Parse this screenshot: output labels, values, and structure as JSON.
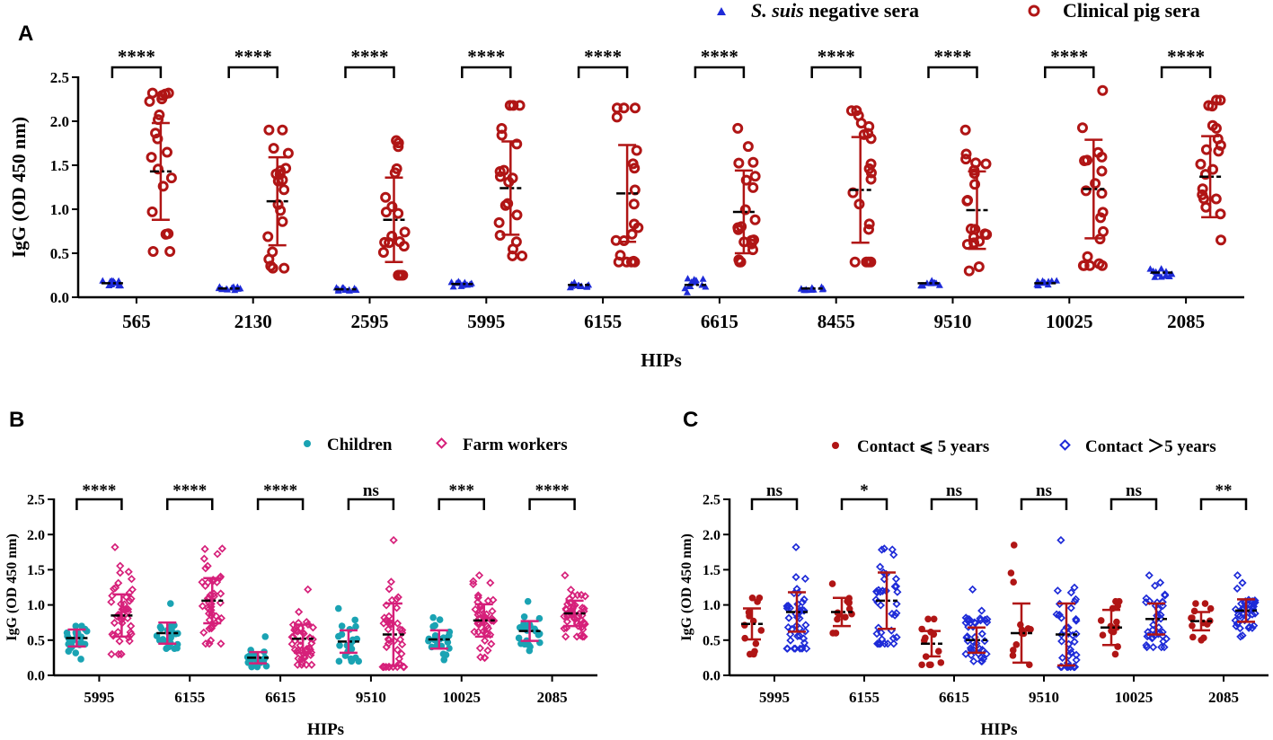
{
  "chart_data": [
    {
      "panel": "A",
      "type": "scatter",
      "xlabel": "HIPs",
      "ylabel": "IgG (OD 450 nm)",
      "ylim": [
        0,
        2.5
      ],
      "yticks": [
        "0.0",
        "0.5",
        "1.0",
        "1.5",
        "2.0",
        "2.5"
      ],
      "categories": [
        "565",
        "2130",
        "2595",
        "5995",
        "6155",
        "6615",
        "8455",
        "9510",
        "10025",
        "2085"
      ],
      "significance": [
        "****",
        "****",
        "****",
        "****",
        "****",
        "****",
        "****",
        "****",
        "****",
        "****"
      ],
      "legend": [
        {
          "prefix": "S. suis",
          "suffix": " negative sera",
          "color": "#1e2bd8",
          "marker": "triangle"
        },
        {
          "prefix": "",
          "suffix": "Clinical pig sera",
          "color": "#b01515",
          "marker": "open-circle"
        }
      ],
      "series": [
        {
          "name": "S. suis negative sera",
          "n": 12,
          "center": [
            0.16,
            0.1,
            0.09,
            0.15,
            0.14,
            0.14,
            0.1,
            0.16,
            0.16,
            0.28
          ],
          "spread": [
            0.03,
            0.02,
            0.02,
            0.03,
            0.03,
            0.09,
            0.02,
            0.03,
            0.03,
            0.06
          ],
          "mean": [
            0.16,
            0.1,
            0.09,
            0.15,
            0.14,
            0.14,
            0.1,
            0.16,
            0.16,
            0.28
          ]
        },
        {
          "name": "Clinical pig sera",
          "n": 20,
          "min": [
            0.52,
            0.33,
            0.25,
            0.47,
            0.4,
            0.4,
            0.4,
            0.3,
            0.36,
            0.65
          ],
          "max": [
            2.32,
            1.9,
            1.78,
            2.18,
            2.15,
            1.92,
            2.12,
            1.9,
            2.35,
            2.24
          ],
          "mean": [
            1.43,
            1.09,
            0.88,
            1.24,
            1.18,
            0.97,
            1.22,
            0.99,
            1.23,
            1.37
          ],
          "sd": [
            0.55,
            0.5,
            0.48,
            0.53,
            0.55,
            0.47,
            0.6,
            0.44,
            0.56,
            0.46
          ]
        }
      ]
    },
    {
      "panel": "B",
      "type": "scatter",
      "xlabel": "HIPs",
      "ylabel": "IgG (OD 450 nm)",
      "ylim": [
        0,
        2.5
      ],
      "yticks": [
        "0.0",
        "0.5",
        "1.0",
        "1.5",
        "2.0",
        "2.5"
      ],
      "categories": [
        "5995",
        "6155",
        "6615",
        "9510",
        "10025",
        "2085"
      ],
      "significance": [
        "****",
        "****",
        "****",
        "ns",
        "***",
        "****"
      ],
      "legend": [
        {
          "prefix": "",
          "suffix": "Children",
          "color": "#1aa3b3",
          "marker": "dot"
        },
        {
          "prefix": "",
          "suffix": "Farm workers",
          "color": "#d6207a",
          "marker": "open-diamond"
        }
      ],
      "series": [
        {
          "name": "Children",
          "n": 22,
          "min": [
            0.23,
            0.38,
            0.12,
            0.2,
            0.22,
            0.35
          ],
          "max": [
            0.7,
            1.02,
            0.55,
            0.95,
            0.82,
            1.05
          ],
          "mean": [
            0.53,
            0.6,
            0.25,
            0.48,
            0.51,
            0.63
          ],
          "sd": [
            0.12,
            0.15,
            0.08,
            0.16,
            0.13,
            0.14
          ]
        },
        {
          "name": "Farm workers",
          "n": 45,
          "min": [
            0.3,
            0.45,
            0.15,
            0.12,
            0.25,
            0.55
          ],
          "max": [
            1.82,
            1.8,
            1.22,
            1.92,
            1.42,
            1.42
          ],
          "mean": [
            0.85,
            1.06,
            0.52,
            0.58,
            0.78,
            0.88
          ],
          "sd": [
            0.3,
            0.32,
            0.2,
            0.44,
            0.23,
            0.18
          ]
        }
      ]
    },
    {
      "panel": "C",
      "type": "scatter",
      "xlabel": "HIPs",
      "ylabel": "IgG (OD 450 nm)",
      "ylim": [
        0,
        2.5
      ],
      "yticks": [
        "0.0",
        "0.5",
        "1.0",
        "1.5",
        "2.0",
        "2.5"
      ],
      "categories": [
        "5995",
        "6155",
        "6615",
        "9510",
        "10025",
        "2085"
      ],
      "significance": [
        "ns",
        "*",
        "ns",
        "ns",
        "ns",
        "**"
      ],
      "legend": [
        {
          "prefix": "",
          "suffix": "Contact ⩽ 5 years",
          "color": "#b01515",
          "marker": "dot"
        },
        {
          "prefix": "",
          "suffix": "Contact ＞5 years",
          "color": "#1e2bd8",
          "marker": "open-diamond"
        }
      ],
      "series": [
        {
          "name": "Contact ⩽ 5 years",
          "n": 13,
          "min": [
            0.3,
            0.6,
            0.15,
            0.15,
            0.3,
            0.5
          ],
          "max": [
            1.1,
            1.3,
            0.8,
            1.85,
            1.05,
            1.02
          ],
          "mean": [
            0.73,
            0.9,
            0.45,
            0.6,
            0.68,
            0.77
          ],
          "sd": [
            0.22,
            0.2,
            0.18,
            0.42,
            0.25,
            0.13
          ]
        },
        {
          "name": "Contact ＞5 years",
          "n": 40,
          "min": [
            0.38,
            0.45,
            0.2,
            0.12,
            0.4,
            0.55
          ],
          "max": [
            1.82,
            1.8,
            1.22,
            1.92,
            1.42,
            1.42
          ],
          "mean": [
            0.9,
            1.06,
            0.5,
            0.58,
            0.8,
            0.92
          ],
          "sd": [
            0.28,
            0.4,
            0.18,
            0.44,
            0.22,
            0.16
          ]
        }
      ]
    }
  ]
}
